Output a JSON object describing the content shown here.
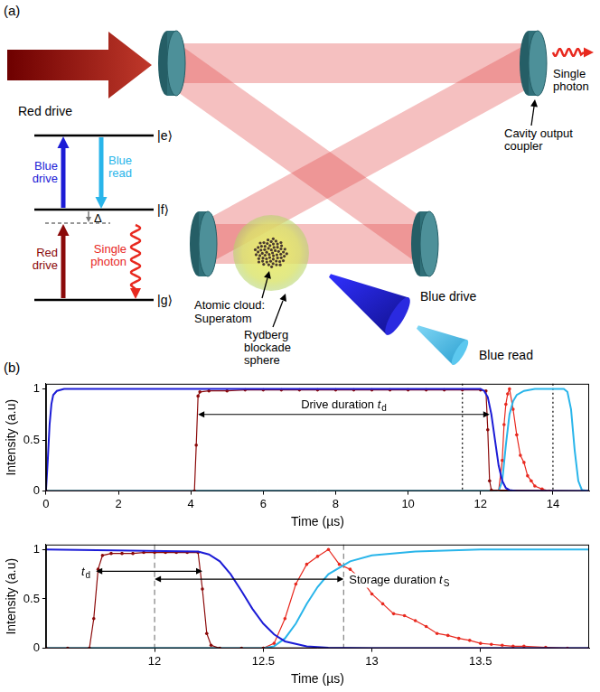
{
  "diagram": {
    "panel_label": "(a)",
    "red_drive_beam": "Red drive",
    "single_photon_output": "Single photon",
    "output_coupler": "Cavity output coupler",
    "atomic_cloud": "Atomic cloud: Superatom",
    "blockade": "Rydberg blockade sphere",
    "blue_drive_beam": "Blue drive",
    "blue_read_beam": "Blue read",
    "levels": {
      "e": "|e⟩",
      "f": "|f⟩",
      "g": "|g⟩"
    },
    "transitions": {
      "blue_drive": "Blue drive",
      "blue_read": "Blue read",
      "red_drive": "Red drive",
      "single_photon": "Single photon",
      "detuning": "Δ"
    }
  },
  "panel_b_label": "(b)",
  "chart_data": [
    {
      "type": "line",
      "xlabel": "Time (µs)",
      "ylabel": "Intensity (a.u)",
      "xlim": [
        0,
        15
      ],
      "xticks": [
        0,
        2,
        4,
        6,
        8,
        10,
        12,
        14
      ],
      "ylim": [
        0,
        1.05
      ],
      "yticks": [
        0,
        0.5,
        1
      ],
      "grid": false,
      "series": [
        {
          "name": "Blue drive",
          "color": "#1c1cd6",
          "marker": "none",
          "line_style": "solid",
          "x": [
            0,
            0.05,
            0.1,
            0.15,
            0.2,
            0.3,
            0.5,
            1,
            12,
            12.1,
            12.2,
            12.3,
            12.4,
            12.5,
            12.6,
            12.7,
            12.8,
            13,
            15
          ],
          "values": [
            0,
            0.3,
            0.65,
            0.85,
            0.94,
            0.98,
            1,
            1,
            1,
            0.98,
            0.92,
            0.75,
            0.5,
            0.25,
            0.1,
            0.03,
            0.01,
            0,
            0
          ]
        },
        {
          "name": "Red drive",
          "color": "#8b0a0a",
          "marker": "circle",
          "line_style": "solid",
          "x": [
            0,
            4.1,
            4.15,
            4.2,
            4.25,
            4.5,
            5,
            5.5,
            6,
            6.5,
            7,
            7.5,
            8,
            8.5,
            9,
            9.5,
            10,
            10.5,
            11,
            11.5,
            12,
            12.15,
            12.2,
            12.25,
            12.3,
            15
          ],
          "values": [
            0,
            0,
            0.45,
            0.93,
            0.97,
            0.98,
            0.98,
            0.99,
            0.99,
            0.99,
            0.99,
            0.99,
            0.99,
            0.99,
            0.99,
            0.99,
            0.99,
            0.99,
            0.99,
            0.99,
            0.99,
            0.98,
            0.6,
            0.1,
            0.01,
            0
          ]
        },
        {
          "name": "Blue read",
          "color": "#29b5ea",
          "marker": "none",
          "line_style": "solid",
          "x": [
            0,
            12.5,
            12.6,
            12.7,
            12.8,
            12.9,
            13,
            13.2,
            13.5,
            14.3,
            14.4,
            14.5,
            14.6,
            14.7,
            14.8,
            15
          ],
          "values": [
            0,
            0,
            0.1,
            0.45,
            0.75,
            0.88,
            0.94,
            0.98,
            1,
            1,
            0.97,
            0.8,
            0.4,
            0.1,
            0.01,
            0
          ]
        },
        {
          "name": "Single photon",
          "color": "#e8291f",
          "marker": "circle",
          "line_style": "solid",
          "x": [
            12.5,
            12.6,
            12.65,
            12.7,
            12.75,
            12.8,
            12.9,
            13,
            13.1,
            13.2,
            13.3,
            13.4,
            13.5,
            13.7,
            13.9
          ],
          "values": [
            0,
            0.3,
            0.65,
            0.85,
            0.95,
            1,
            0.8,
            0.55,
            0.35,
            0.28,
            0.15,
            0.1,
            0.05,
            0.02,
            0
          ]
        }
      ],
      "vlines": [
        {
          "x": 11.5,
          "line_style": "dotted"
        },
        {
          "x": 14,
          "line_style": "dotted"
        }
      ],
      "annotations": [
        {
          "text": "Drive duration",
          "symbol": "t",
          "subscript": "d",
          "x": [
            4.2,
            12.25
          ],
          "y": 0.75
        }
      ]
    },
    {
      "type": "line",
      "xlabel": "Time (µs)",
      "ylabel": "Intensity (a.u)",
      "xlim": [
        11.5,
        14
      ],
      "xticks": [
        12,
        12.5,
        13,
        13.5
      ],
      "ylim": [
        0,
        1.05
      ],
      "yticks": [
        0,
        0.5,
        1
      ],
      "grid": false,
      "series": [
        {
          "name": "Blue drive",
          "color": "#1c1cd6",
          "marker": "none",
          "line_style": "solid",
          "x": [
            11.5,
            12.2,
            12.25,
            12.3,
            12.35,
            12.4,
            12.45,
            12.5,
            12.55,
            12.6,
            12.7,
            12.8,
            13,
            14
          ],
          "values": [
            1,
            0.98,
            0.95,
            0.88,
            0.75,
            0.58,
            0.4,
            0.25,
            0.14,
            0.07,
            0.02,
            0.005,
            0,
            0
          ]
        },
        {
          "name": "Red drive",
          "color": "#8b0a0a",
          "marker": "circle",
          "line_style": "solid",
          "x": [
            11.5,
            11.6,
            11.7,
            11.72,
            11.74,
            11.76,
            11.8,
            11.85,
            11.9,
            11.95,
            12,
            12.05,
            12.1,
            12.15,
            12.2,
            12.22,
            12.24,
            12.26,
            12.3,
            12.4,
            12.5,
            14
          ],
          "values": [
            0,
            0,
            0,
            0.3,
            0.8,
            0.94,
            0.96,
            0.96,
            0.96,
            0.97,
            0.97,
            0.97,
            0.97,
            0.97,
            0.97,
            0.6,
            0.15,
            0.03,
            0,
            0,
            0,
            0
          ]
        },
        {
          "name": "Blue read",
          "color": "#29b5ea",
          "marker": "none",
          "line_style": "solid",
          "x": [
            11.5,
            12.5,
            12.55,
            12.6,
            12.65,
            12.7,
            12.75,
            12.8,
            12.9,
            13,
            13.2,
            13.5,
            14
          ],
          "values": [
            0,
            0,
            0.02,
            0.1,
            0.25,
            0.45,
            0.62,
            0.75,
            0.88,
            0.94,
            0.98,
            1,
            1
          ]
        },
        {
          "name": "Single photon",
          "color": "#e8291f",
          "marker": "circle",
          "line_style": "solid",
          "x": [
            12.5,
            12.55,
            12.6,
            12.65,
            12.7,
            12.75,
            12.8,
            12.85,
            12.9,
            12.95,
            13,
            13.05,
            13.1,
            13.15,
            13.2,
            13.25,
            13.3,
            13.35,
            13.4,
            13.45,
            13.5,
            13.55,
            13.6,
            13.65,
            13.7,
            13.8,
            13.9
          ],
          "values": [
            0,
            0.05,
            0.3,
            0.65,
            0.85,
            0.93,
            1,
            0.85,
            0.8,
            0.7,
            0.55,
            0.45,
            0.35,
            0.33,
            0.28,
            0.22,
            0.15,
            0.13,
            0.1,
            0.08,
            0.05,
            0.04,
            0.03,
            0.02,
            0.02,
            0.01,
            0
          ]
        }
      ],
      "vlines": [
        {
          "x": 12,
          "line_style": "dashed"
        },
        {
          "x": 12.87,
          "line_style": "dashed"
        }
      ],
      "annotations": [
        {
          "symbol": "t",
          "subscript": "d",
          "x": [
            11.73,
            12.22
          ],
          "y": 0.78
        },
        {
          "text": "Storage duration",
          "symbol": "t",
          "subscript": "S",
          "x": [
            12,
            12.87
          ],
          "y": 0.7
        }
      ]
    }
  ]
}
